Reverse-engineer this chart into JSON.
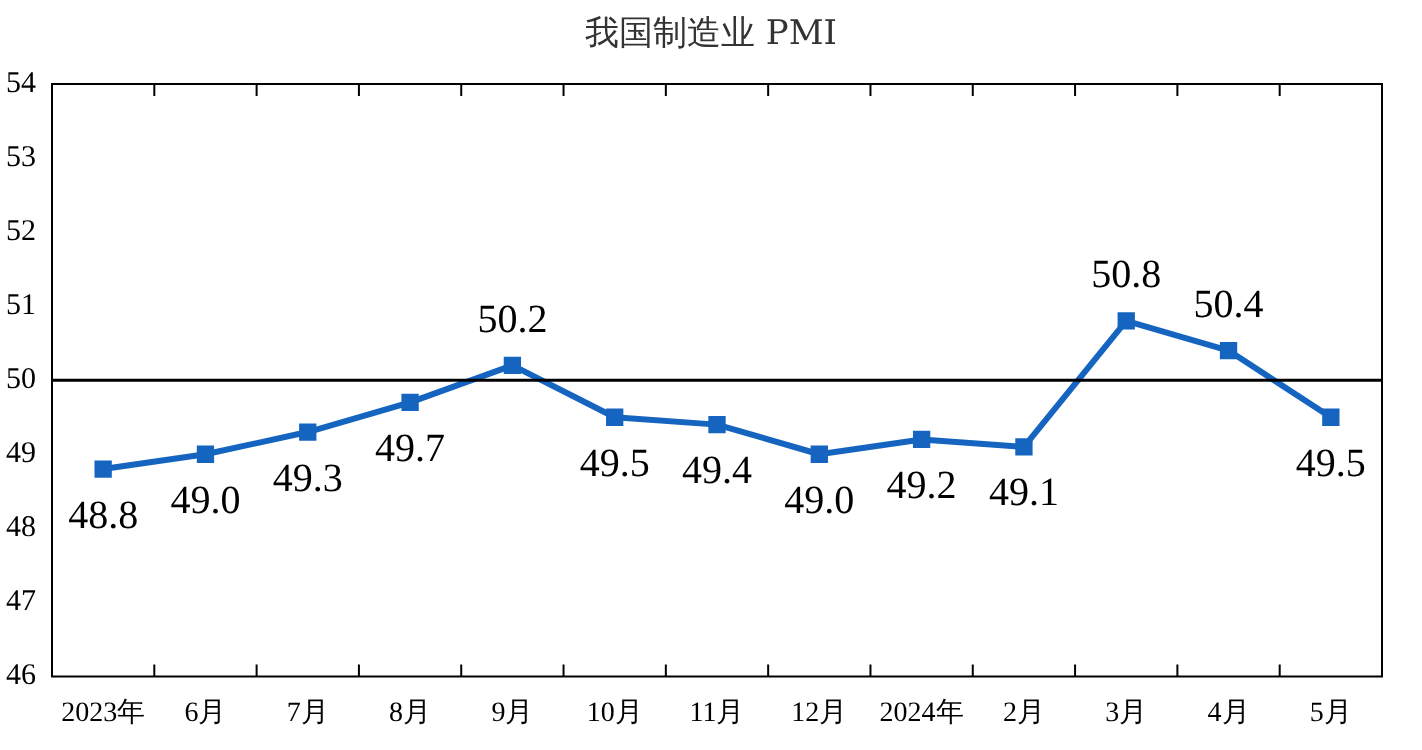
{
  "chart_data": {
    "type": "line",
    "title": "我国制造业 PMI",
    "categories": [
      "2023年",
      "6月",
      "7月",
      "8月",
      "9月",
      "10月",
      "11月",
      "12月",
      "2024年",
      "2月",
      "3月",
      "4月",
      "5月"
    ],
    "series": [
      {
        "color": "#1565c0",
        "values": [
          48.8,
          49.0,
          49.3,
          49.7,
          50.2,
          49.5,
          49.4,
          49.0,
          49.2,
          49.1,
          50.8,
          50.4,
          49.5
        ],
        "value_labels": [
          "48.8",
          "49.0",
          "49.3",
          "49.7",
          "50.2",
          "49.5",
          "49.4",
          "49.0",
          "49.2",
          "49.1",
          "50.8",
          "50.4",
          "49.5"
        ]
      }
    ],
    "ylim": [
      46,
      54
    ],
    "yticks": [
      46,
      47,
      48,
      49,
      50,
      51,
      52,
      53,
      54
    ],
    "ref_lines": [
      {
        "axis": "y",
        "value": 50,
        "color": "#000000"
      }
    ],
    "grid": false,
    "legend": false,
    "marker": "square",
    "line_style": "solid"
  }
}
